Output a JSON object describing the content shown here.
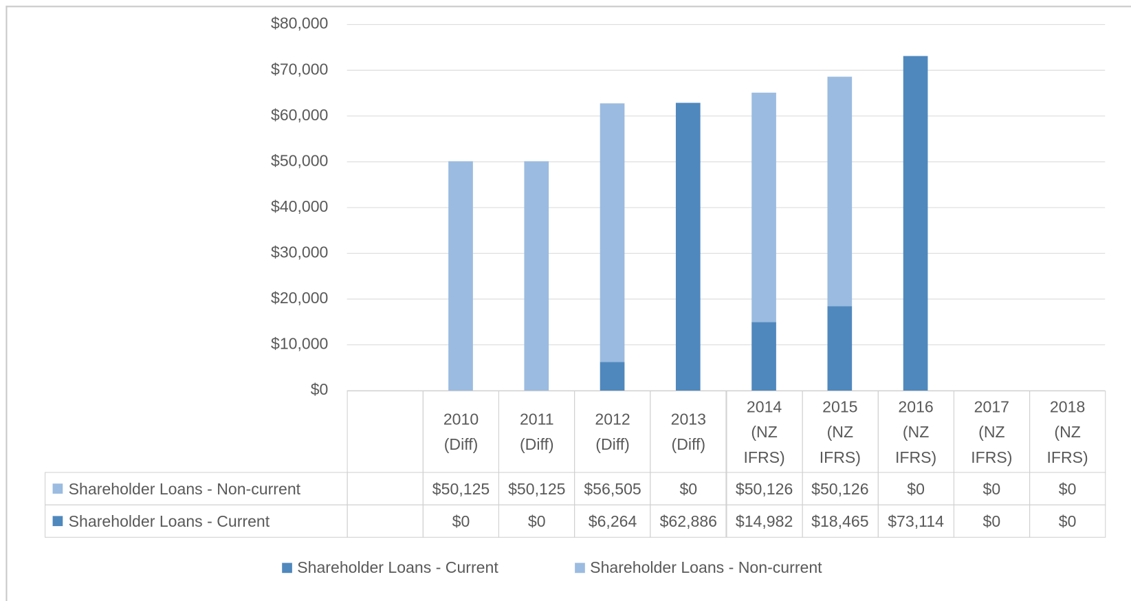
{
  "chart_data": {
    "type": "stacked_bar",
    "categories": [
      null,
      "2010 (Diff)",
      "2011 (Diff)",
      "2012 (Diff)",
      "2013 (Diff)",
      "2014 (NZ IFRS)",
      "2015 (NZ IFRS)",
      "2016 (NZ IFRS)",
      "2017 (NZ IFRS)",
      "2018 (NZ IFRS)"
    ],
    "series": [
      {
        "name": "Shareholder Loans - Current",
        "color": "#4f88bd",
        "values": [
          null,
          0,
          0,
          6264,
          62886,
          14982,
          18465,
          73114,
          0,
          0
        ],
        "value_labels": [
          null,
          "$0",
          "$0",
          "$6,264",
          "$62,886",
          "$14,982",
          "$18,465",
          "$73,114",
          "$0",
          "$0"
        ]
      },
      {
        "name": "Shareholder Loans - Non-current",
        "color": "#9bbbe0",
        "values": [
          null,
          50125,
          50125,
          56505,
          0,
          50126,
          50126,
          0,
          0,
          0
        ],
        "value_labels": [
          null,
          "$50,125",
          "$50,125",
          "$56,505",
          "$0",
          "$50,126",
          "$50,126",
          "$0",
          "$0",
          "$0"
        ]
      }
    ],
    "ylim": [
      0,
      80000
    ],
    "yticks": [
      {
        "value": 0,
        "label": "$0"
      },
      {
        "value": 10000,
        "label": "$10,000"
      },
      {
        "value": 20000,
        "label": "$20,000"
      },
      {
        "value": 30000,
        "label": "$30,000"
      },
      {
        "value": 40000,
        "label": "$40,000"
      },
      {
        "value": 50000,
        "label": "$50,000"
      },
      {
        "value": 60000,
        "label": "$60,000"
      },
      {
        "value": 70000,
        "label": "$70,000"
      },
      {
        "value": 80000,
        "label": "$80,000"
      }
    ],
    "grid": true,
    "legend": "bottom",
    "data_table": true
  }
}
